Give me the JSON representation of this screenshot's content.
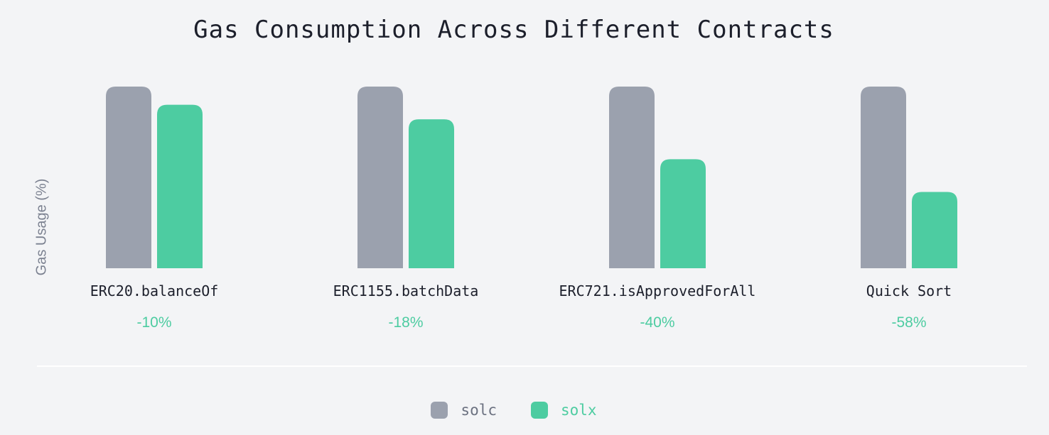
{
  "chart_data": {
    "type": "bar",
    "title": "Gas Consumption Across Different Contracts",
    "ylabel": "Gas Usage (%)",
    "xlabel": "",
    "ylim": [
      0,
      100
    ],
    "categories": [
      "ERC20.balanceOf",
      "ERC1155.batchData",
      "ERC721.isApprovedForAll",
      "Quick Sort"
    ],
    "series": [
      {
        "name": "solc",
        "values": [
          100,
          100,
          100,
          100
        ]
      },
      {
        "name": "solx",
        "values": [
          90,
          82,
          60,
          42
        ]
      }
    ],
    "annotations": [
      "-10%",
      "-18%",
      "-40%",
      "-58%"
    ],
    "legend": "bottom-center",
    "grid": false
  },
  "colors": {
    "solc": "#9ba1ae",
    "solx": "#4dcca1",
    "annotation": "#4dcca1",
    "solc_legend_text": "#6b7180"
  }
}
